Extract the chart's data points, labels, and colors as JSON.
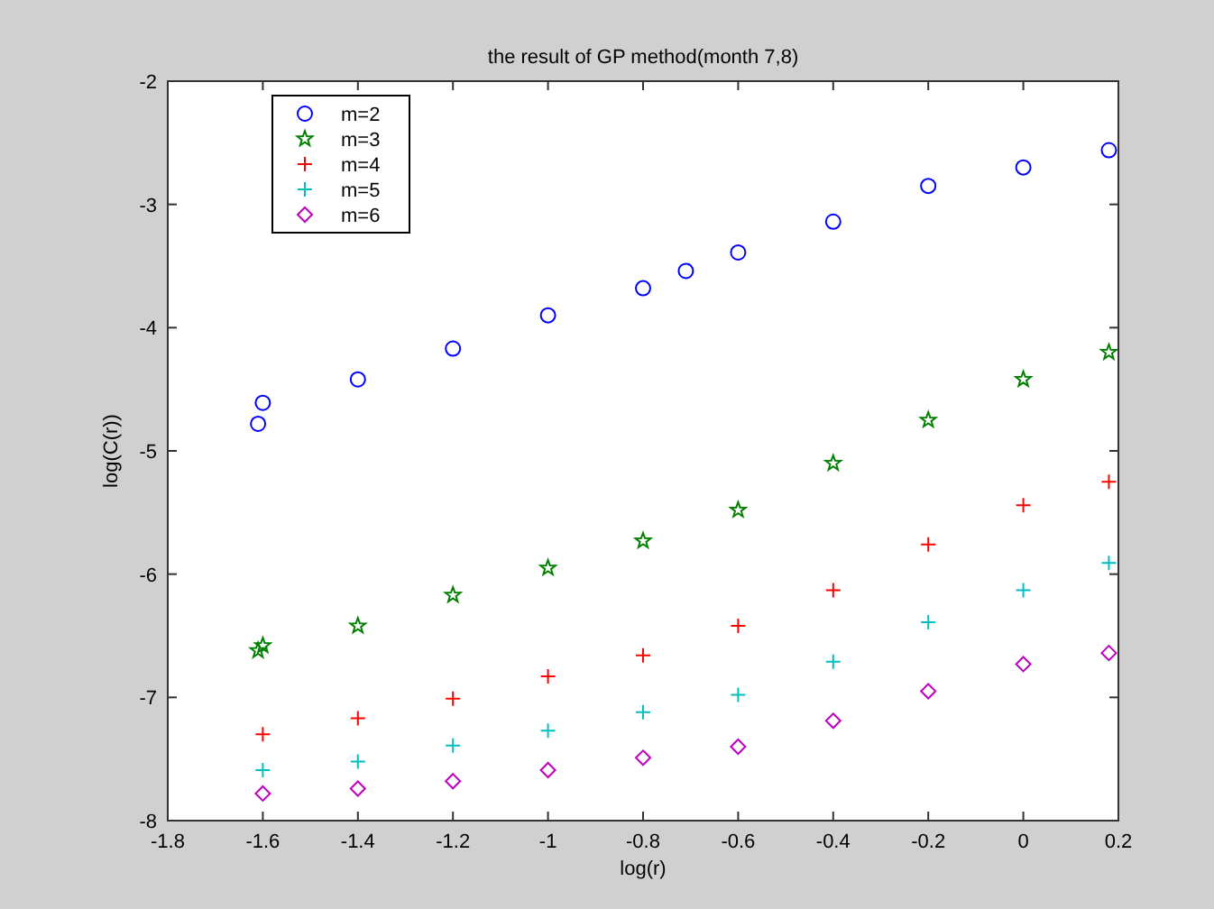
{
  "chart_data": {
    "type": "scatter",
    "title": "the result of GP method(month 7,8)",
    "xlabel": "log(r)",
    "ylabel": "log(C(r))",
    "xlim": [
      -1.8,
      0.2
    ],
    "xticks": [
      -1.8,
      -1.6,
      -1.4,
      -1.2,
      -1,
      -0.8,
      -0.6,
      -0.4,
      -0.2,
      0,
      0.2
    ],
    "ylim": [
      -8,
      -2
    ],
    "yticks": [
      -8,
      -7,
      -6,
      -5,
      -4,
      -3,
      -2
    ],
    "grid": false,
    "legend": "top left",
    "series": [
      {
        "name": "m=2",
        "color": "#0000ff",
        "marker": "circle",
        "x": [
          -1.61,
          -1.6,
          -1.4,
          -1.2,
          -1.0,
          -0.8,
          -0.71,
          -0.6,
          -0.4,
          -0.2,
          0,
          0.18
        ],
        "values": [
          -4.78,
          -4.61,
          -4.42,
          -4.17,
          -3.9,
          -3.68,
          -3.54,
          -3.39,
          -3.14,
          -2.85,
          -2.7,
          -2.56
        ]
      },
      {
        "name": "m=3",
        "color": "#008000",
        "marker": "star",
        "x": [
          -1.61,
          -1.6,
          -1.4,
          -1.2,
          -1.0,
          -0.8,
          -0.6,
          -0.4,
          -0.2,
          0,
          0.18
        ],
        "values": [
          -6.62,
          -6.58,
          -6.42,
          -6.17,
          -5.95,
          -5.73,
          -5.48,
          -5.1,
          -4.75,
          -4.42,
          -4.2
        ]
      },
      {
        "name": "m=4",
        "color": "#ff0000",
        "marker": "cross",
        "x": [
          -1.6,
          -1.4,
          -1.2,
          -1.0,
          -0.8,
          -0.6,
          -0.4,
          -0.2,
          0,
          0.18
        ],
        "values": [
          -7.3,
          -7.17,
          -7.01,
          -6.83,
          -6.66,
          -6.42,
          -6.13,
          -5.76,
          -5.44,
          -5.25
        ]
      },
      {
        "name": "m=5",
        "color": "#00bfbf",
        "marker": "cross",
        "x": [
          -1.6,
          -1.4,
          -1.2,
          -1.0,
          -0.8,
          -0.6,
          -0.4,
          -0.2,
          0,
          0.18
        ],
        "values": [
          -7.59,
          -7.52,
          -7.39,
          -7.27,
          -7.12,
          -6.98,
          -6.71,
          -6.39,
          -6.13,
          -5.91
        ]
      },
      {
        "name": "m=6",
        "color": "#bf00bf",
        "marker": "diamond",
        "x": [
          -1.6,
          -1.4,
          -1.2,
          -1.0,
          -0.8,
          -0.6,
          -0.4,
          -0.2,
          0,
          0.18
        ],
        "values": [
          -7.78,
          -7.74,
          -7.68,
          -7.59,
          -7.49,
          -7.4,
          -7.19,
          -6.95,
          -6.73,
          -6.64
        ]
      }
    ]
  }
}
